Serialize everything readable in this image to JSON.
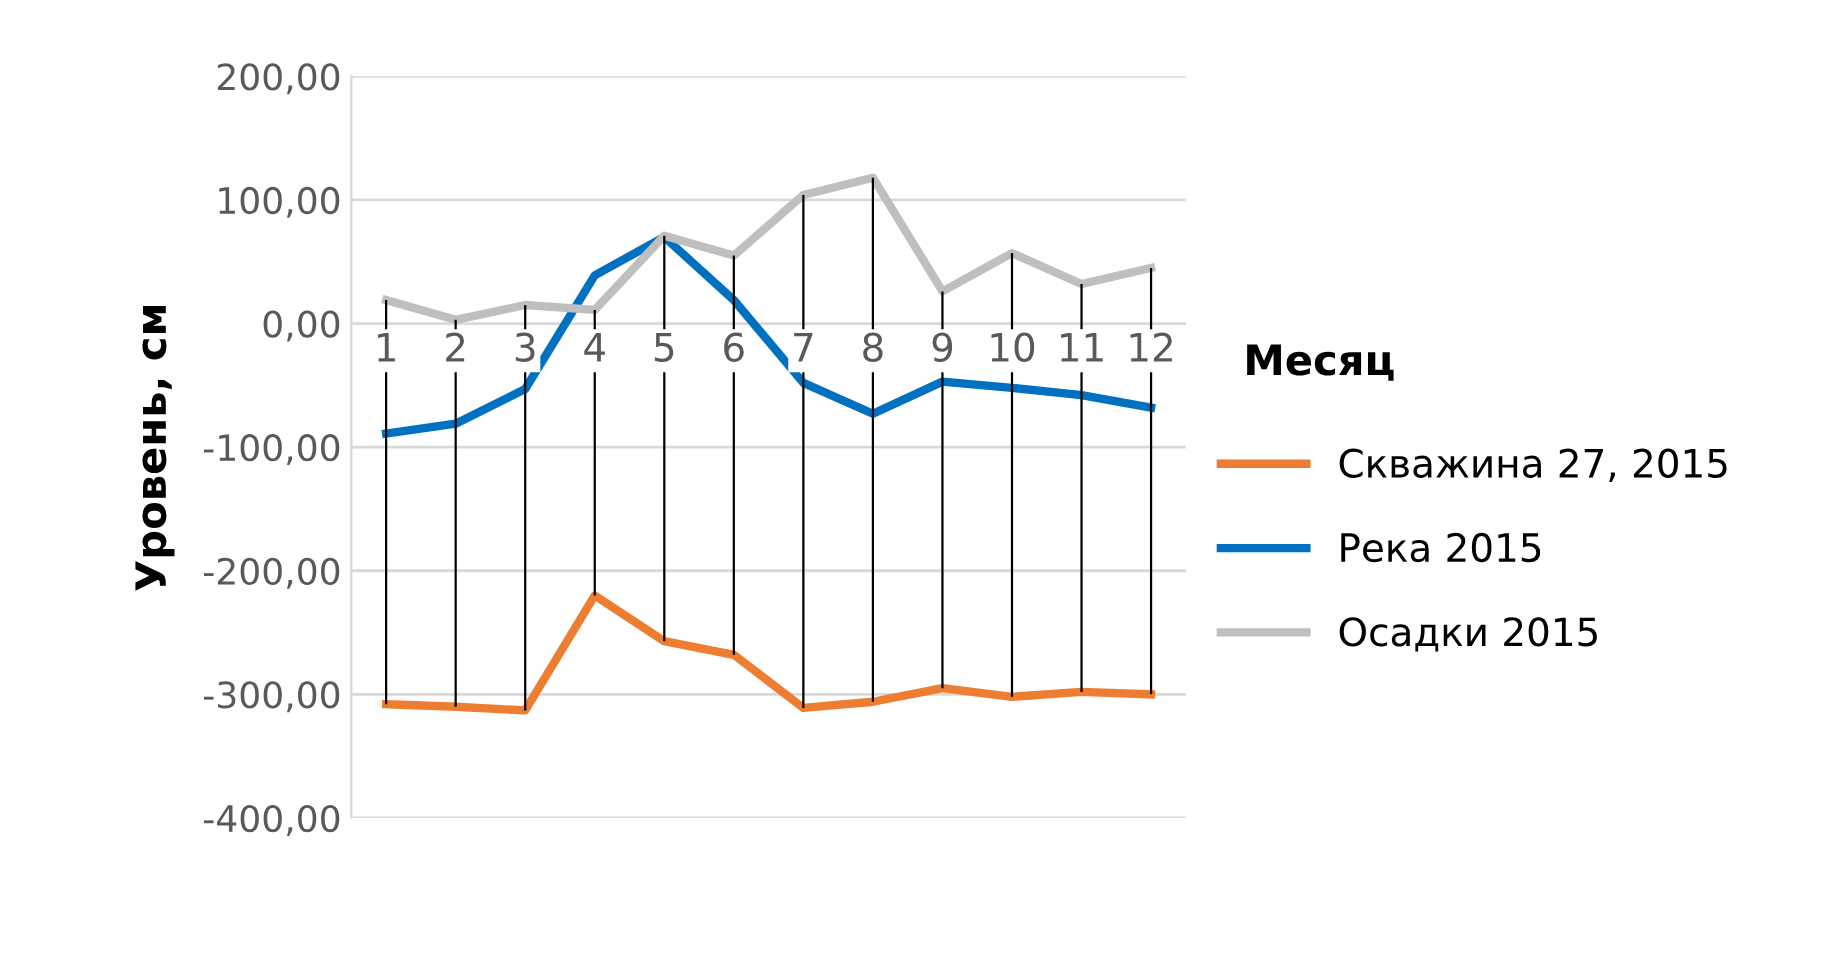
{
  "chart_data": {
    "type": "line",
    "ylabel": "Уровень, см",
    "xlabel": "Месяц",
    "categories": [
      "1",
      "2",
      "3",
      "4",
      "5",
      "6",
      "7",
      "8",
      "9",
      "10",
      "11",
      "12"
    ],
    "series": [
      {
        "name": "Скважина 27, 2015",
        "color": "#ed7d31",
        "values": [
          -308,
          -310,
          -313,
          -220,
          -257,
          -268,
          -311,
          -306,
          -295,
          -302,
          -298,
          -300
        ]
      },
      {
        "name": "Река 2015",
        "color": "#0070c0",
        "values": [
          -89,
          -81,
          -53,
          39,
          70,
          19,
          -48,
          -73,
          -47,
          -52,
          -58,
          -68
        ]
      },
      {
        "name": "Осадки 2015",
        "color": "#bfbfbf",
        "values": [
          19,
          3,
          15,
          11,
          71,
          55,
          104,
          118,
          26,
          57,
          32,
          45
        ],
        "errors": [
          [
            -308,
            19
          ],
          [
            -310,
            3
          ],
          [
            -313,
            15
          ],
          [
            -220,
            11
          ],
          [
            -257,
            71
          ],
          [
            -268,
            55
          ],
          [
            -311,
            104
          ],
          [
            -306,
            118
          ],
          [
            -295,
            26
          ],
          [
            -302,
            57
          ],
          [
            -298,
            32
          ],
          [
            -300,
            45
          ]
        ]
      }
    ],
    "ylim": [
      -400,
      200
    ],
    "yticks": [
      {
        "value": -400,
        "label": "-400,00"
      },
      {
        "value": -300,
        "label": "-300,00"
      },
      {
        "value": -200,
        "label": "-200,00"
      },
      {
        "value": -100,
        "label": "-100,00"
      },
      {
        "value": 0,
        "label": "0,00"
      },
      {
        "value": 100,
        "label": "100,00"
      },
      {
        "value": 200,
        "label": "200,00"
      }
    ],
    "grid": "y",
    "legend": "right",
    "marker": "none",
    "line_style": "solid"
  }
}
